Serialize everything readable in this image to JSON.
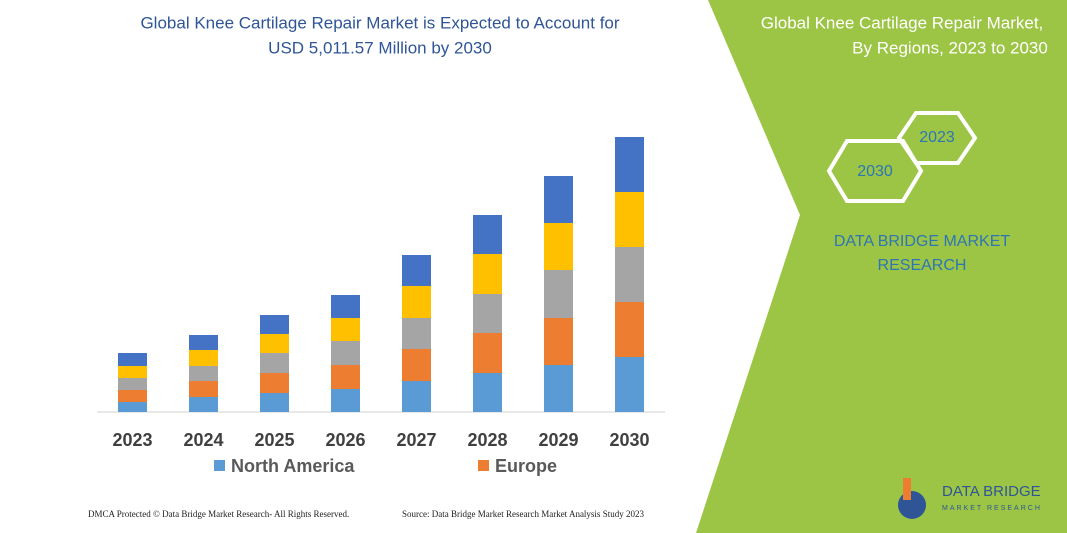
{
  "chart_data": {
    "type": "stacked-bar",
    "title": [
      "Global Knee Cartilage Repair Market is Expected to Account for",
      "USD 5,011.57 Million by 2030"
    ],
    "categories": [
      "2023",
      "2024",
      "2025",
      "2026",
      "2027",
      "2028",
      "2029",
      "2030"
    ],
    "series": [
      {
        "name": "North America",
        "color": "#5b9bd5",
        "values": [
          10,
          15,
          19,
          23,
          31,
          39,
          47,
          55
        ]
      },
      {
        "name": "Europe",
        "color": "#ed7d31",
        "values": [
          12,
          16,
          20,
          24,
          32,
          40,
          47,
          55
        ]
      },
      {
        "color": "#a5a5a5",
        "values": [
          12,
          15,
          20,
          24,
          31,
          39,
          48,
          55
        ]
      },
      {
        "color": "#ffc000",
        "values": [
          12,
          16,
          19,
          23,
          32,
          40,
          47,
          55
        ]
      },
      {
        "color": "#4472c4",
        "values": [
          13,
          15,
          19,
          23,
          31,
          39,
          47,
          55
        ]
      }
    ],
    "ylim": [
      0,
      300
    ]
  },
  "panel": {
    "title": [
      "Global Knee Cartilage Repair Market,",
      "By Regions, 2023 to 2030"
    ],
    "hexagons": [
      "2030",
      "2023"
    ],
    "brand": [
      "DATA BRIDGE MARKET",
      "RESEARCH"
    ]
  },
  "footer": {
    "left": "DMCA Protected © Data Bridge Market Research-  All Rights Reserved.",
    "right": "Source: Data Bridge Market Research  Market Analysis Study 2023"
  },
  "logo": {
    "name": "DATA BRIDGE",
    "tagline": "MARKET RESEARCH"
  }
}
